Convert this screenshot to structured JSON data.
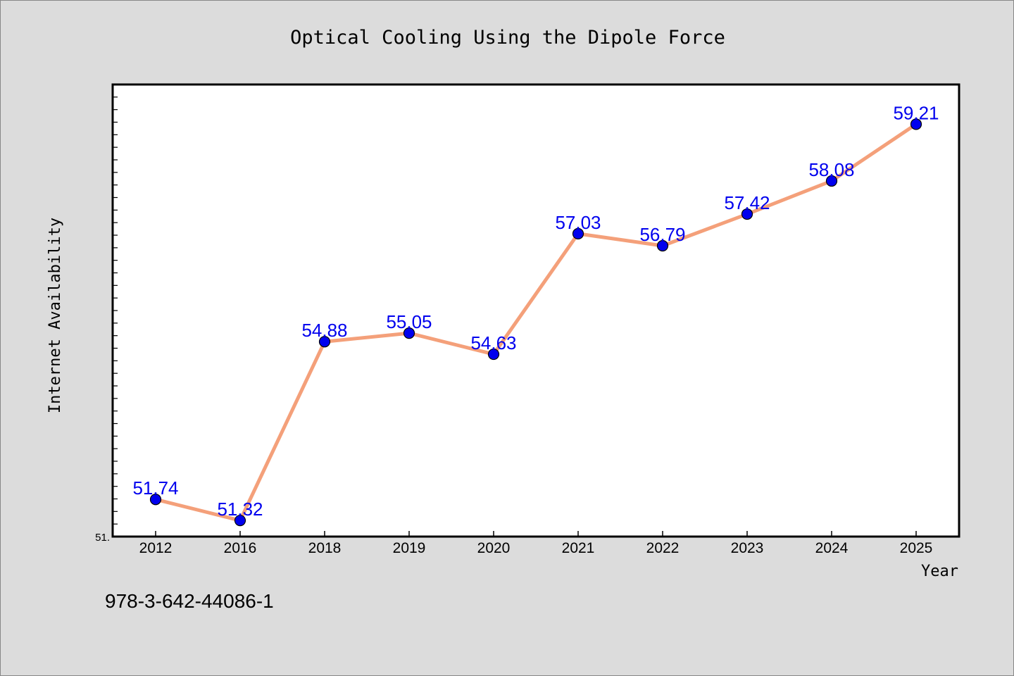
{
  "chart_data": {
    "type": "line",
    "title": "Optical Cooling Using the Dipole Force",
    "xlabel": "Year",
    "ylabel": "Internet Availability",
    "categories": [
      "2012",
      "2016",
      "2018",
      "2019",
      "2020",
      "2021",
      "2022",
      "2023",
      "2024",
      "2025"
    ],
    "series": [
      {
        "values": [
          51.74,
          51.32,
          54.88,
          55.05,
          54.63,
          57.03,
          56.79,
          57.42,
          58.08,
          59.21
        ],
        "labels": [
          "51.74",
          "51.32",
          "54.88",
          "55.05",
          "54.63",
          "57.03",
          "56.79",
          "57.42",
          "58.08",
          "59.21"
        ]
      }
    ],
    "ylim": [
      51.0,
      60.0
    ],
    "y_min_label": "51.",
    "grid": false,
    "line_color": "#f4a07a",
    "marker_color": "#0000ee",
    "label_color": "#0000ee"
  },
  "footer": {
    "isbn": "978-3-642-44086-1"
  }
}
